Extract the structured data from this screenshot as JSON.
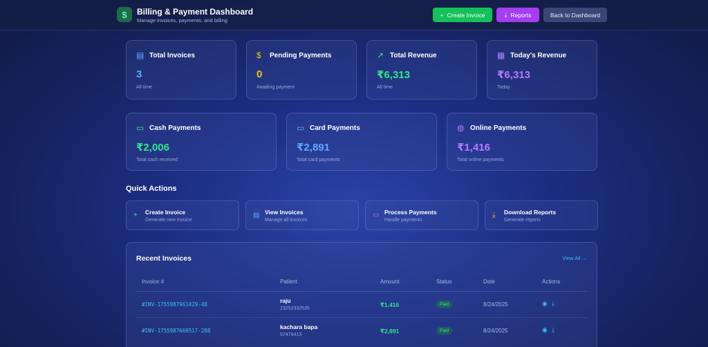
{
  "header": {
    "title": "Billing & Payment Dashboard",
    "subtitle": "Manage invoices, payments, and billing",
    "create_label": "Create Invoice",
    "reports_label": "Reports",
    "back_label": "Back to Dashboard"
  },
  "stats": [
    {
      "title": "Total Invoices",
      "value": "3",
      "sub": "All time"
    },
    {
      "title": "Pending Payments",
      "value": "0",
      "sub": "Awaiting payment"
    },
    {
      "title": "Total Revenue",
      "value": "₹6,313",
      "sub": "All time"
    },
    {
      "title": "Today's Revenue",
      "value": "₹6,313",
      "sub": "Today"
    }
  ],
  "payments": [
    {
      "title": "Cash Payments",
      "value": "₹2,006",
      "sub": "Total cash received"
    },
    {
      "title": "Card Payments",
      "value": "₹2,891",
      "sub": "Total card payments"
    },
    {
      "title": "Online Payments",
      "value": "₹1,416",
      "sub": "Total online payments"
    }
  ],
  "quick_actions": {
    "heading": "Quick Actions",
    "items": [
      {
        "title": "Create Invoice",
        "sub": "Generate new invoice"
      },
      {
        "title": "View Invoices",
        "sub": "Manage all invoices"
      },
      {
        "title": "Process Payments",
        "sub": "Handle payments"
      },
      {
        "title": "Download Reports",
        "sub": "Generate reports"
      }
    ]
  },
  "recent": {
    "title": "Recent Invoices",
    "view_all": "View All →",
    "columns": [
      "Invoice #",
      "Patient",
      "Amount",
      "Status",
      "Date",
      "Actions"
    ],
    "rows": [
      {
        "invoice": "#INV-1755987961429-48",
        "patient": "raju",
        "phone": "23252332535",
        "amount": "₹1,416",
        "status": "Paid",
        "date": "8/24/2025"
      },
      {
        "invoice": "#INV-1755987669517-288",
        "patient": "kachara bapa",
        "phone": "57476413",
        "amount": "₹2,891",
        "status": "Paid",
        "date": "8/24/2025"
      }
    ]
  },
  "colors": {
    "green": "#2ee889",
    "yellow": "#f2c417",
    "purple": "#b37bff",
    "blue": "#5fa8ff"
  }
}
